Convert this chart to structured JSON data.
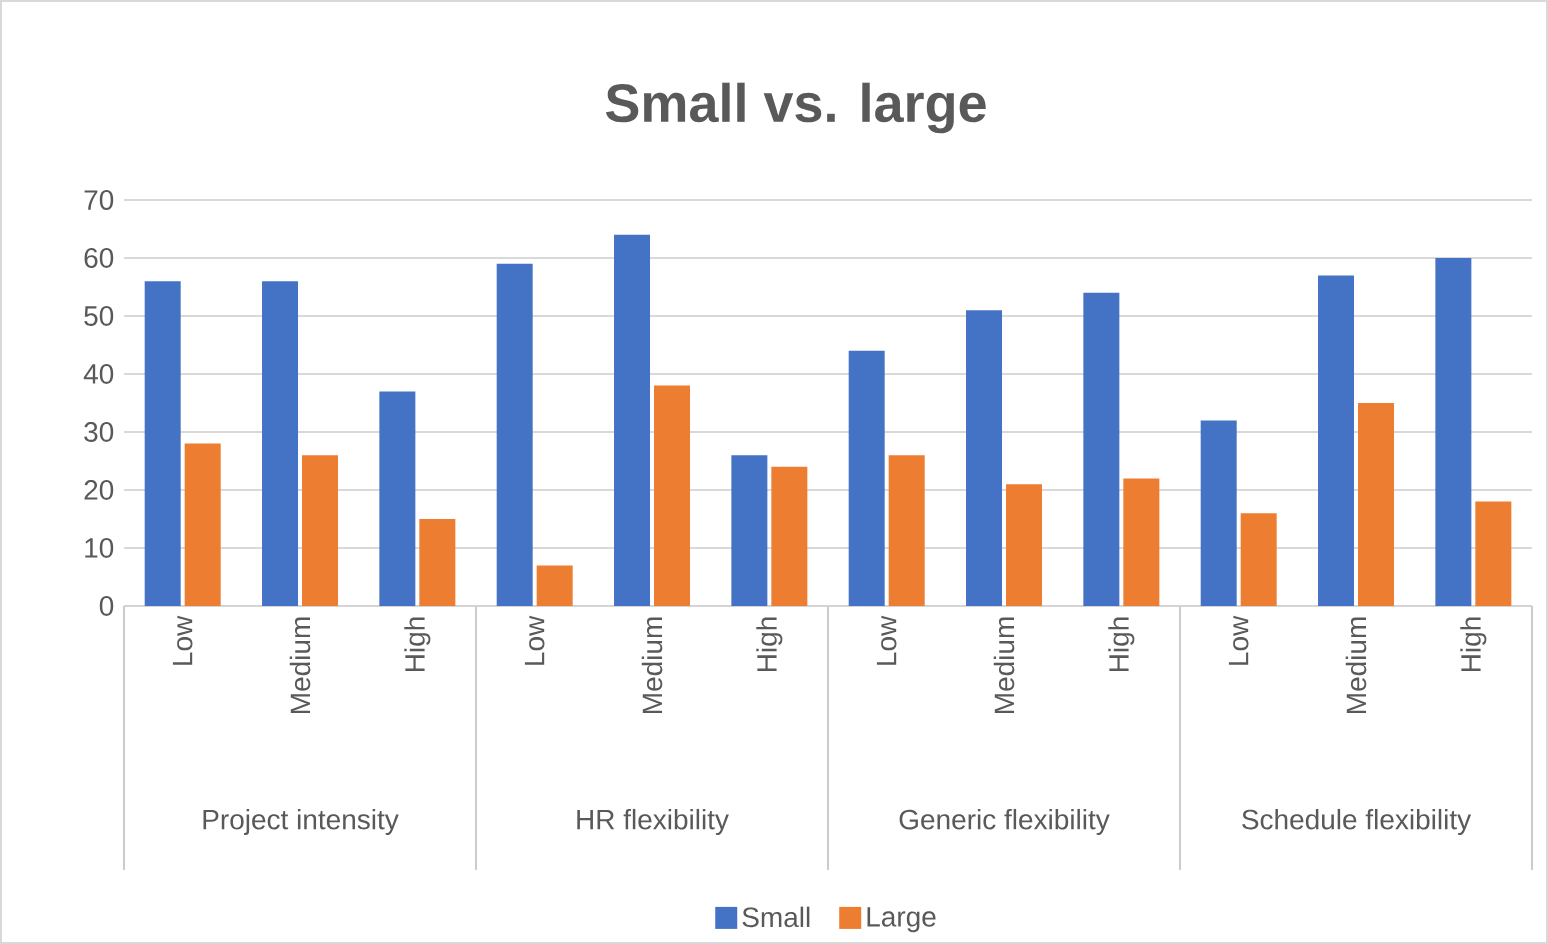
{
  "chart_data": {
    "type": "bar",
    "title": "Small vs. large",
    "categories": [
      "Low",
      "Medium",
      "High",
      "Low",
      "Medium",
      "High",
      "Low",
      "Medium",
      "High",
      "Low",
      "Medium",
      "High"
    ],
    "series": [
      {
        "name": "Small",
        "color": "#4472c4",
        "values": [
          56,
          56,
          37,
          59,
          64,
          26,
          44,
          51,
          54,
          32,
          57,
          60
        ]
      },
      {
        "name": "Large",
        "color": "#ed7d31",
        "values": [
          28,
          26,
          15,
          7,
          38,
          24,
          26,
          21,
          22,
          16,
          35,
          18
        ]
      }
    ],
    "annotations": [
      "Project intensity",
      "HR flexibility",
      "Generic flexibility",
      "Schedule flexibility"
    ],
    "ylim": [
      0,
      70
    ],
    "yticks": [
      0,
      10,
      20,
      30,
      40,
      50,
      60,
      70
    ],
    "grid": "y",
    "legend": "bottom"
  }
}
